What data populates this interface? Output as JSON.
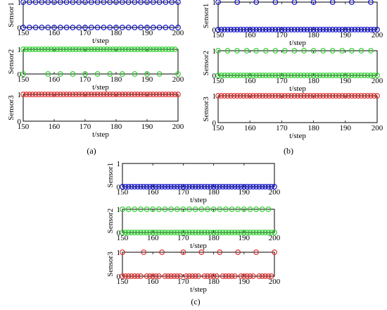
{
  "chart_data": [
    {
      "panel_label": "(a)",
      "type": "scatter",
      "xlim": [
        150,
        200
      ],
      "x_ticks": [
        150,
        160,
        170,
        180,
        190,
        200
      ],
      "y_ticks": [
        0,
        1
      ],
      "xlabel": "t/step",
      "subplots": [
        {
          "ylabel": "Sensor1",
          "color": "#0000cc",
          "ylim": [
            0,
            1
          ],
          "points": [
            {
              "x": [
                150,
                152,
                154,
                156,
                158,
                160,
                162,
                164,
                166,
                168,
                170,
                172,
                174,
                176,
                178,
                180,
                182,
                184,
                186,
                188,
                190,
                192,
                194,
                196,
                198,
                200
              ],
              "y": 1
            },
            {
              "x": [
                150,
                152,
                154,
                156,
                158,
                160,
                162,
                164,
                166,
                168,
                170,
                172,
                174,
                176,
                178,
                180,
                182,
                184,
                186,
                188,
                190,
                192,
                194,
                196,
                198,
                200
              ],
              "y": 0
            }
          ]
        },
        {
          "ylabel": "Sensor2",
          "color": "#22cc22",
          "ylim": [
            0,
            1
          ],
          "points": [
            {
              "x": [
                150,
                151,
                152,
                153,
                154,
                155,
                156,
                157,
                158,
                159,
                160,
                161,
                162,
                163,
                164,
                165,
                166,
                167,
                168,
                169,
                170,
                171,
                172,
                173,
                174,
                175,
                176,
                177,
                178,
                179,
                180,
                181,
                182,
                183,
                184,
                185,
                186,
                187,
                188,
                189,
                190,
                191,
                192,
                193,
                194,
                195,
                196,
                197,
                198,
                199
              ],
              "y": 1
            },
            {
              "x": [
                150,
                158,
                162,
                166,
                170,
                174,
                178,
                182,
                186,
                190,
                194,
                200
              ],
              "y": 0
            }
          ]
        },
        {
          "ylabel": "Sensor3",
          "color": "#dd2222",
          "ylim": [
            0,
            1
          ],
          "points": [
            {
              "x": [
                150,
                151,
                152,
                153,
                154,
                155,
                156,
                157,
                158,
                159,
                160,
                161,
                162,
                163,
                164,
                165,
                166,
                167,
                168,
                169,
                170,
                171,
                172,
                173,
                174,
                175,
                176,
                177,
                178,
                179,
                180,
                181,
                182,
                183,
                184,
                185,
                186,
                187,
                188,
                189,
                190,
                191,
                192,
                193,
                194,
                195,
                196,
                197,
                198,
                199,
                200
              ],
              "y": 1
            }
          ]
        }
      ]
    },
    {
      "panel_label": "(b)",
      "type": "scatter",
      "xlim": [
        150,
        200
      ],
      "x_ticks": [
        150,
        160,
        170,
        180,
        190,
        200
      ],
      "y_ticks": [
        0,
        1
      ],
      "xlabel": "t/step",
      "subplots": [
        {
          "ylabel": "Sensor1",
          "color": "#0000cc",
          "ylim": [
            0,
            1
          ],
          "points": [
            {
              "x": [
                150,
                156,
                162,
                168,
                174,
                180,
                186,
                192,
                198
              ],
              "y": 1
            },
            {
              "x": [
                150,
                151,
                152,
                153,
                154,
                155,
                156,
                157,
                158,
                159,
                160,
                161,
                162,
                163,
                164,
                165,
                166,
                167,
                168,
                169,
                170,
                171,
                172,
                173,
                174,
                175,
                176,
                177,
                178,
                179,
                180,
                181,
                182,
                183,
                184,
                185,
                186,
                187,
                188,
                189,
                190,
                191,
                192,
                193,
                194,
                195,
                196,
                197,
                198,
                199,
                200
              ],
              "y": 0
            }
          ]
        },
        {
          "ylabel": "Sensor2",
          "color": "#22cc22",
          "ylim": [
            0,
            1
          ],
          "points": [
            {
              "x": [
                150,
                153,
                156,
                159,
                162,
                165,
                168,
                171,
                174,
                177,
                180,
                183,
                186,
                189,
                192,
                195,
                198
              ],
              "y": 1
            },
            {
              "x": [
                150,
                151,
                152,
                153,
                154,
                155,
                156,
                157,
                158,
                159,
                160,
                161,
                162,
                163,
                164,
                165,
                166,
                167,
                168,
                169,
                170,
                171,
                172,
                173,
                174,
                175,
                176,
                177,
                178,
                179,
                180,
                181,
                182,
                183,
                184,
                185,
                186,
                187,
                188,
                189,
                190,
                191,
                192,
                193,
                194,
                195,
                196,
                197,
                198,
                199,
                200
              ],
              "y": 0
            }
          ]
        },
        {
          "ylabel": "Sensor3",
          "color": "#dd2222",
          "ylim": [
            0,
            1
          ],
          "points": [
            {
              "x": [
                150,
                151,
                152,
                153,
                154,
                155,
                156,
                157,
                158,
                159,
                160,
                161,
                162,
                163,
                164,
                165,
                166,
                167,
                168,
                169,
                170,
                171,
                172,
                173,
                174,
                175,
                176,
                177,
                178,
                179,
                180,
                181,
                182,
                183,
                184,
                185,
                186,
                187,
                188,
                189,
                190,
                191,
                192,
                193,
                194,
                195,
                196,
                197,
                198,
                199,
                200
              ],
              "y": 1
            }
          ]
        }
      ]
    },
    {
      "panel_label": "(c)",
      "type": "scatter",
      "xlim": [
        150,
        200
      ],
      "x_ticks": [
        150,
        160,
        170,
        180,
        190,
        200
      ],
      "y_ticks": [
        0,
        1
      ],
      "xlabel": "t/step",
      "subplots": [
        {
          "ylabel": "Sensor1",
          "color": "#0000cc",
          "ylim": [
            0,
            1
          ],
          "points": [
            {
              "x": [
                150,
                151,
                152,
                153,
                154,
                155,
                156,
                157,
                158,
                159,
                160,
                161,
                162,
                163,
                164,
                165,
                166,
                167,
                168,
                169,
                170,
                171,
                172,
                173,
                174,
                175,
                176,
                177,
                178,
                179,
                180,
                181,
                182,
                183,
                184,
                185,
                186,
                187,
                188,
                189,
                190,
                191,
                192,
                193,
                194,
                195,
                196,
                197,
                198,
                199,
                200
              ],
              "y": 0
            }
          ]
        },
        {
          "ylabel": "Sensor2",
          "color": "#22cc22",
          "ylim": [
            0,
            1
          ],
          "points": [
            {
              "x": [
                150,
                152,
                154,
                156,
                158,
                160,
                162,
                164,
                166,
                168,
                170,
                172,
                174,
                176,
                178,
                180,
                182,
                184,
                186,
                188,
                190,
                192,
                194,
                196,
                198
              ],
              "y": 1
            },
            {
              "x": [
                150,
                151,
                152,
                153,
                154,
                155,
                156,
                157,
                158,
                159,
                160,
                161,
                162,
                163,
                164,
                165,
                166,
                167,
                168,
                169,
                170,
                171,
                172,
                173,
                174,
                175,
                176,
                177,
                178,
                179,
                180,
                181,
                182,
                183,
                184,
                185,
                186,
                187,
                188,
                189,
                190,
                191,
                192,
                193,
                194,
                195,
                196,
                197,
                198,
                199,
                200
              ],
              "y": 0
            }
          ]
        },
        {
          "ylabel": "Sensor3",
          "color": "#dd2222",
          "ylim": [
            0,
            1
          ],
          "points": [
            {
              "x": [
                150,
                157,
                163,
                170,
                176,
                182,
                188,
                194,
                200
              ],
              "y": 1
            },
            {
              "x": [
                150,
                151,
                152,
                153,
                154,
                155,
                156,
                158,
                159,
                160,
                161,
                162,
                164,
                165,
                166,
                167,
                168,
                169,
                171,
                172,
                173,
                174,
                175,
                177,
                178,
                179,
                180,
                181,
                183,
                184,
                185,
                186,
                187,
                189,
                190,
                191,
                192,
                193,
                195,
                196,
                197,
                198,
                199
              ],
              "y": 0
            }
          ]
        }
      ]
    }
  ]
}
